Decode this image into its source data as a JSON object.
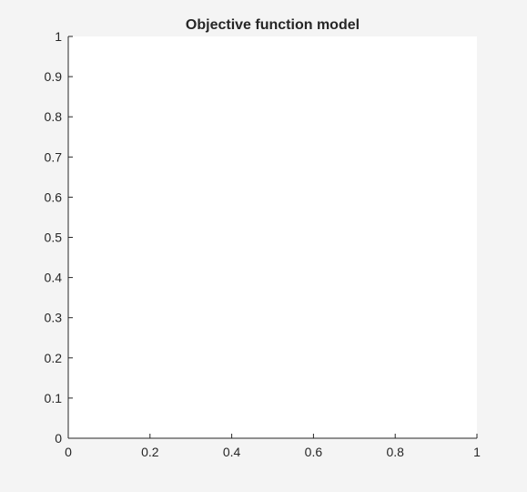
{
  "figure": {
    "background": "#f4f4f4",
    "axes_background": "#ffffff",
    "axis_color": "#262626"
  },
  "chart_data": {
    "type": "line",
    "title": "Objective function model",
    "xlabel": "",
    "ylabel": "",
    "xlim": [
      0,
      1
    ],
    "ylim": [
      0,
      1
    ],
    "x_ticks": [
      0,
      0.2,
      0.4,
      0.6,
      0.8,
      1
    ],
    "x_tick_labels": [
      "0",
      "0.2",
      "0.4",
      "0.6",
      "0.8",
      "1"
    ],
    "y_ticks": [
      0,
      0.1,
      0.2,
      0.3,
      0.4,
      0.5,
      0.6,
      0.7,
      0.8,
      0.9,
      1
    ],
    "y_tick_labels": [
      "0",
      "0.1",
      "0.2",
      "0.3",
      "0.4",
      "0.5",
      "0.6",
      "0.7",
      "0.8",
      "0.9",
      "1"
    ],
    "grid": false,
    "box": false,
    "series": []
  }
}
